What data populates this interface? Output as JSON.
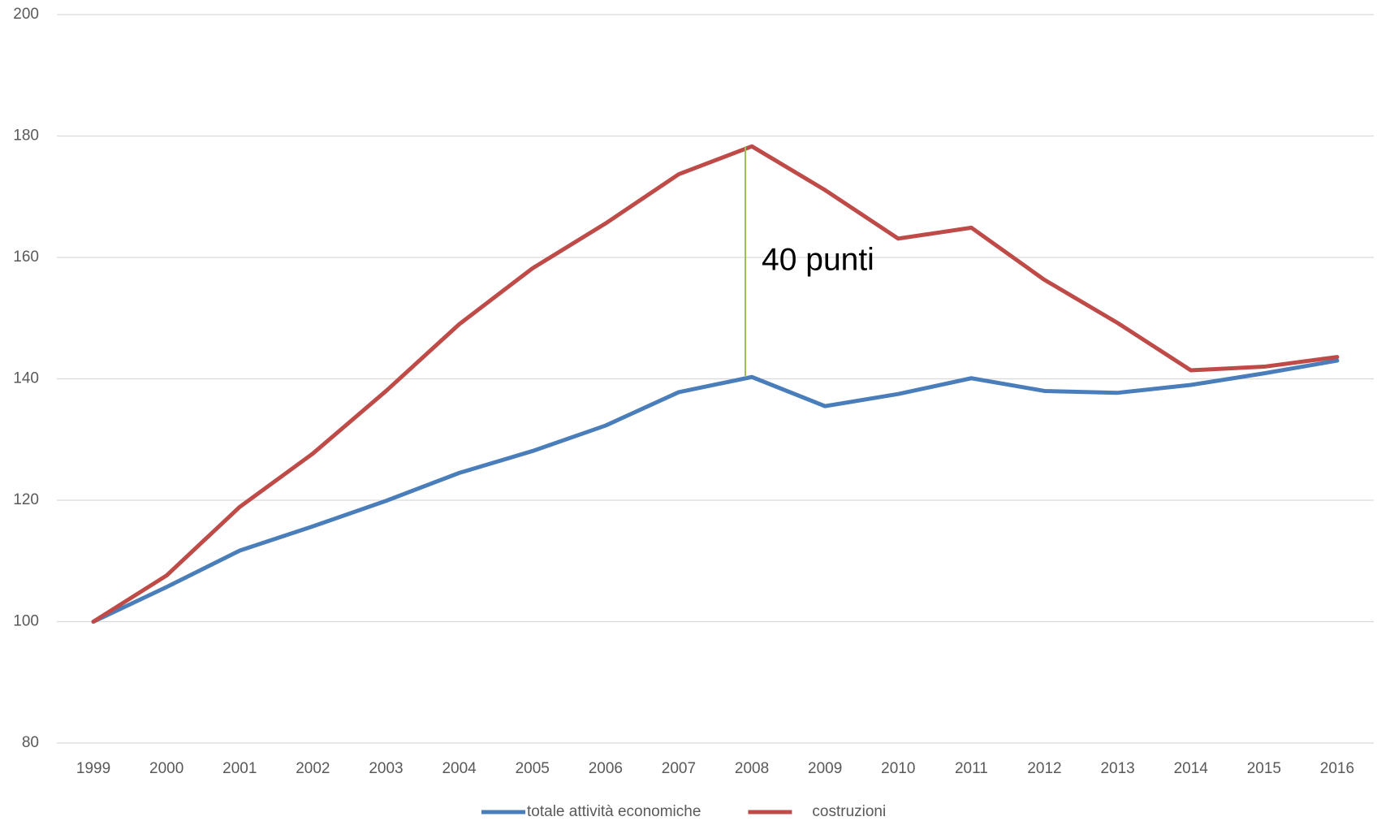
{
  "chart_data": {
    "type": "line",
    "categories": [
      "1999",
      "2000",
      "2001",
      "2002",
      "2003",
      "2004",
      "2005",
      "2006",
      "2007",
      "2008",
      "2009",
      "2010",
      "2011",
      "2012",
      "2013",
      "2014",
      "2015",
      "2016"
    ],
    "series": [
      {
        "name": "totale attività economiche",
        "color": "#4a7ebb",
        "values": [
          100,
          105.7,
          111.7,
          115.7,
          119.9,
          124.5,
          128.1,
          132.3,
          137.8,
          140.3,
          135.5,
          137.5,
          140.1,
          138.0,
          137.7,
          139.0,
          140.9,
          143.0
        ]
      },
      {
        "name": "costruzioni",
        "color": "#be4b48",
        "values": [
          100,
          107.6,
          118.9,
          127.7,
          138.0,
          149.0,
          158.2,
          165.6,
          173.7,
          178.3,
          171.1,
          163.1,
          164.9,
          156.3,
          149.2,
          141.4,
          142.0,
          143.6
        ]
      }
    ],
    "ylim": [
      80,
      200
    ],
    "yticks": [
      80,
      100,
      120,
      140,
      160,
      180,
      200
    ],
    "grid": true,
    "legend": "bottom",
    "annotation": {
      "text": "40 punti",
      "category": "2008",
      "color": "#9bbb59"
    }
  }
}
